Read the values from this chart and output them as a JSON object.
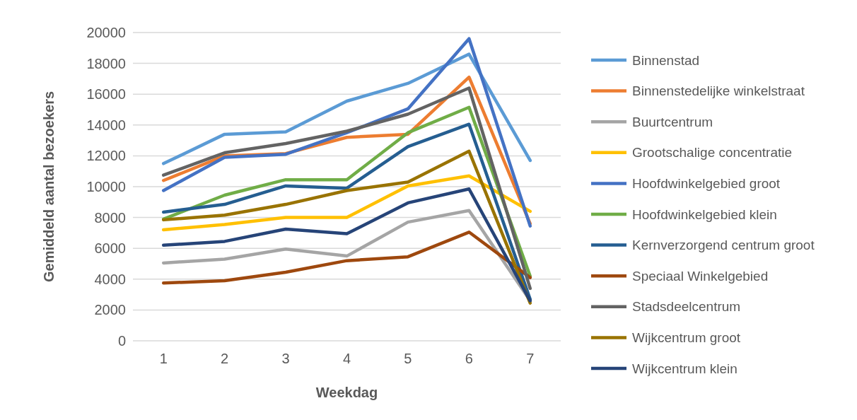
{
  "chart_data": {
    "type": "line",
    "xlabel": "Weekdag",
    "ylabel": "Gemiddeld aantal bezoekers",
    "categories": [
      "1",
      "2",
      "3",
      "4",
      "5",
      "6",
      "7"
    ],
    "ylim": [
      0,
      20000
    ],
    "yticks": [
      0,
      2000,
      4000,
      6000,
      8000,
      10000,
      12000,
      14000,
      16000,
      18000,
      20000
    ],
    "grid": "y",
    "legend": "right",
    "marker": "none",
    "line_style": "solid",
    "series": [
      {
        "name": "Binnenstad",
        "color": "#5b9bd5",
        "values": [
          11500,
          13400,
          13550,
          15550,
          16700,
          18600,
          11700
        ]
      },
      {
        "name": "Binnenstedelijke winkelstraat",
        "color": "#ed7d31",
        "values": [
          10400,
          12000,
          12150,
          13200,
          13400,
          17100,
          7600
        ]
      },
      {
        "name": "Buurtcentrum",
        "color": "#a5a5a5",
        "values": [
          5050,
          5300,
          5950,
          5500,
          7700,
          8450,
          2600
        ]
      },
      {
        "name": "Grootschalige concentratie",
        "color": "#ffc000",
        "values": [
          7200,
          7550,
          8000,
          8000,
          10050,
          10700,
          8400
        ]
      },
      {
        "name": "Hoofdwinkelgebied groot",
        "color": "#4472c4",
        "values": [
          9750,
          11900,
          12100,
          13500,
          15050,
          19600,
          7450
        ]
      },
      {
        "name": "Hoofdwinkelgebied klein",
        "color": "#70ad47",
        "values": [
          7900,
          9450,
          10450,
          10450,
          13500,
          15150,
          4200
        ]
      },
      {
        "name": "Kernverzorgend centrum groot",
        "color": "#255e91",
        "values": [
          8350,
          8850,
          10050,
          9900,
          12600,
          14050,
          2700
        ]
      },
      {
        "name": "Speciaal Winkelgebied",
        "color": "#9e480e",
        "values": [
          3750,
          3900,
          4450,
          5200,
          5450,
          7050,
          4100
        ]
      },
      {
        "name": "Stadsdeelcentrum",
        "color": "#636363",
        "values": [
          10750,
          12200,
          12800,
          13600,
          14700,
          16400,
          3400
        ]
      },
      {
        "name": "Wijkcentrum groot",
        "color": "#997300",
        "values": [
          7850,
          8150,
          8850,
          9750,
          10300,
          12300,
          2450
        ]
      },
      {
        "name": "Wijkcentrum klein",
        "color": "#264478",
        "values": [
          6200,
          6450,
          7250,
          6950,
          8950,
          9850,
          2600
        ]
      }
    ]
  }
}
